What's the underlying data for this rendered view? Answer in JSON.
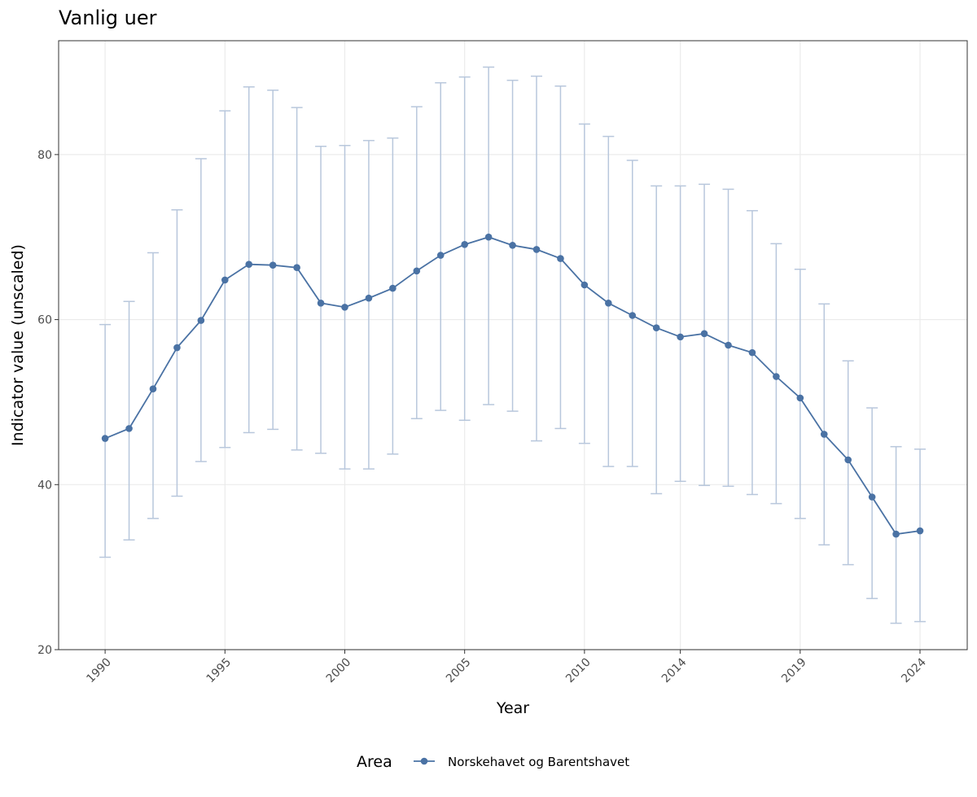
{
  "chart_data": {
    "type": "line",
    "title": "Vanlig uer",
    "x_label": "Year",
    "y_label": "Indicator value (unscaled)",
    "legend_title": "Area",
    "legend_position": "bottom",
    "grid": true,
    "x": [
      1990,
      1991,
      1992,
      1993,
      1994,
      1995,
      1996,
      1997,
      1998,
      1999,
      2000,
      2001,
      2002,
      2003,
      2004,
      2005,
      2006,
      2007,
      2008,
      2009,
      2010,
      2011,
      2012,
      2013,
      2014,
      2015,
      2016,
      2017,
      2018,
      2019,
      2020,
      2021,
      2022,
      2023,
      2024
    ],
    "series": [
      {
        "name": "Norskehavet og Barentshavet",
        "color": "#4a72a4",
        "values": [
          45.6,
          46.8,
          51.6,
          56.6,
          59.9,
          64.8,
          66.7,
          66.6,
          66.3,
          62.0,
          61.5,
          62.6,
          63.8,
          65.9,
          67.8,
          69.1,
          70.0,
          69.0,
          68.5,
          67.4,
          64.2,
          62.0,
          60.5,
          59.0,
          57.9,
          58.3,
          56.9,
          56.0,
          53.1,
          50.5,
          46.1,
          43.0,
          38.5,
          34.0,
          34.4
        ],
        "lower": [
          31.2,
          33.3,
          35.9,
          38.6,
          42.8,
          44.5,
          46.3,
          46.7,
          44.2,
          43.8,
          41.9,
          41.9,
          43.7,
          48.0,
          49.0,
          47.8,
          49.7,
          48.9,
          45.3,
          46.8,
          45.0,
          42.2,
          42.2,
          38.9,
          40.4,
          39.9,
          39.8,
          38.8,
          37.7,
          35.9,
          32.7,
          30.3,
          26.2,
          23.2,
          23.4
        ],
        "upper": [
          59.4,
          62.2,
          68.1,
          73.3,
          79.5,
          85.3,
          88.2,
          87.8,
          85.7,
          81.0,
          81.1,
          81.7,
          82.0,
          85.8,
          88.7,
          89.4,
          90.6,
          89.0,
          89.5,
          88.3,
          83.7,
          82.2,
          79.3,
          76.2,
          76.2,
          76.4,
          75.8,
          73.2,
          69.2,
          66.1,
          61.9,
          55.0,
          49.3,
          44.6,
          44.3
        ]
      }
    ],
    "xlim": [
      1988.06,
      2025.97
    ],
    "xticks": [
      1990,
      1995,
      2000,
      2005,
      2010,
      2014,
      2019,
      2024
    ],
    "ylim": [
      20,
      93.8
    ],
    "yticks": [
      20,
      40,
      60,
      80
    ]
  }
}
